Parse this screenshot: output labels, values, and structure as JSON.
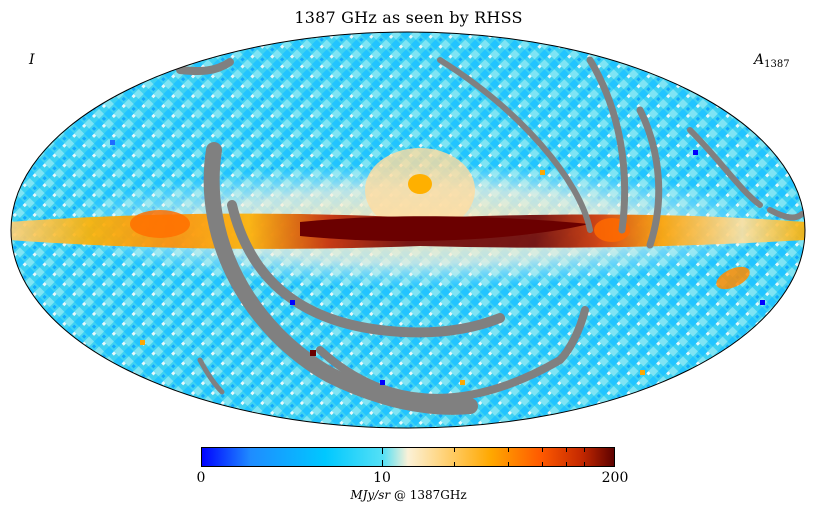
{
  "title": "1387 GHz as seen by RHSS",
  "corner_left": "I",
  "corner_right_main": "A",
  "corner_right_sub": "1387",
  "projection": "mollweide-all-sky",
  "colorbar": {
    "min_label": "0",
    "mid_label": "10",
    "max_label": "200",
    "unit_italic": "MJy/sr",
    "unit_rest": " @ 1387GHz",
    "scale": "log",
    "stops": [
      "#0000ff",
      "#1f8cff",
      "#00c8ff",
      "#55e0f5",
      "#fbf1d7",
      "#ffd580",
      "#ffa800",
      "#ff5a00",
      "#c42800",
      "#5a0000"
    ]
  },
  "colors": {
    "background_sky": "#3fd2f2",
    "masked_gray": "#808080",
    "galactic_core": "#6b0000"
  }
}
